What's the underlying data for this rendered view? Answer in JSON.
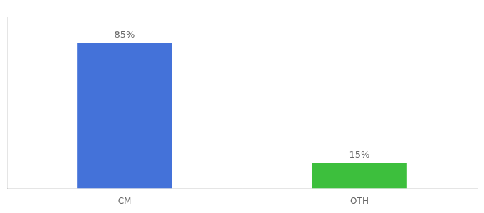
{
  "chart_data": {
    "type": "bar",
    "categories": [
      "CM",
      "OTH"
    ],
    "values": [
      85,
      15
    ],
    "value_labels": [
      "85%",
      "15%"
    ],
    "colors": [
      "#4472d9",
      "#3dbf3d"
    ],
    "ylim": [
      0,
      100
    ],
    "grid": false,
    "data_labels": true,
    "tick_labels": "x"
  }
}
